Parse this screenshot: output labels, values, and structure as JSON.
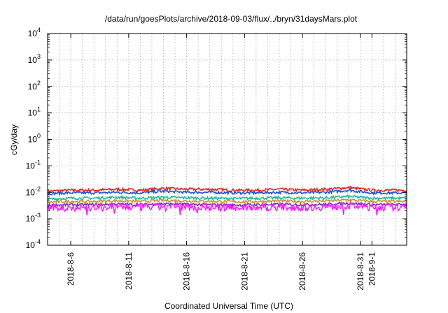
{
  "chart_data": {
    "type": "line",
    "title": "/data/run/goesPlots/archive/2018-09-03/flux/../bryn/31daysMars.plot",
    "xlabel": "Coordinated Universal Time (UTC)",
    "ylabel": "cGy/day",
    "yscale": "log",
    "ylim": [
      0.0001,
      10000
    ],
    "xlim": [
      "2018-08-04T00:00",
      "2018-09-04T00:00"
    ],
    "grid": true,
    "legend": "none",
    "y_ticks": [
      {
        "base": "10",
        "exp": "-4"
      },
      {
        "base": "10",
        "exp": "-3"
      },
      {
        "base": "10",
        "exp": "-2"
      },
      {
        "base": "10",
        "exp": "-1"
      },
      {
        "base": "10",
        "exp": "0"
      },
      {
        "base": "10",
        "exp": "1"
      },
      {
        "base": "10",
        "exp": "2"
      },
      {
        "base": "10",
        "exp": "3"
      },
      {
        "base": "10",
        "exp": "4"
      }
    ],
    "x_ticks": [
      {
        "label": "2018-8-6",
        "date": "2018-08-06"
      },
      {
        "label": "2018-8-11",
        "date": "2018-08-11"
      },
      {
        "label": "2018-8-16",
        "date": "2018-08-16"
      },
      {
        "label": "2018-8-21",
        "date": "2018-08-21"
      },
      {
        "label": "2018-8-26",
        "date": "2018-08-26"
      },
      {
        "label": "2018-8-31",
        "date": "2018-08-31"
      },
      {
        "label": "2018-9-1",
        "date": "2018-09-01"
      }
    ],
    "minor_x_gridlines": [
      "2018-08-04",
      "2018-08-05",
      "2018-08-07",
      "2018-08-08",
      "2018-08-09",
      "2018-08-10",
      "2018-08-12",
      "2018-08-13",
      "2018-08-14",
      "2018-08-15",
      "2018-08-17",
      "2018-08-18",
      "2018-08-19",
      "2018-08-20",
      "2018-08-22",
      "2018-08-23",
      "2018-08-24",
      "2018-08-25",
      "2018-08-27",
      "2018-08-28",
      "2018-08-29",
      "2018-08-30",
      "2018-09-02",
      "2018-09-03"
    ],
    "series": [
      {
        "color": "#e8231a",
        "x": [
          "2018-08-04",
          "2018-08-06",
          "2018-08-08",
          "2018-08-10",
          "2018-08-12",
          "2018-08-14",
          "2018-08-16",
          "2018-08-18",
          "2018-08-20",
          "2018-08-22",
          "2018-08-24",
          "2018-08-26",
          "2018-08-28",
          "2018-08-30",
          "2018-09-01",
          "2018-09-03",
          "2018-09-04"
        ],
        "y": [
          0.011,
          0.012,
          0.012,
          0.013,
          0.012,
          0.014,
          0.013,
          0.013,
          0.012,
          0.012,
          0.013,
          0.012,
          0.013,
          0.015,
          0.012,
          0.012,
          0.012
        ]
      },
      {
        "color": "#1f4fe0",
        "x": [
          "2018-08-04",
          "2018-08-06",
          "2018-08-08",
          "2018-08-10",
          "2018-08-12",
          "2018-08-14",
          "2018-08-16",
          "2018-08-18",
          "2018-08-20",
          "2018-08-22",
          "2018-08-24",
          "2018-08-26",
          "2018-08-28",
          "2018-08-30",
          "2018-09-01",
          "2018-09-03",
          "2018-09-04"
        ],
        "y": [
          0.009,
          0.0095,
          0.0095,
          0.01,
          0.0095,
          0.011,
          0.01,
          0.01,
          0.0095,
          0.0095,
          0.01,
          0.0095,
          0.01,
          0.012,
          0.0095,
          0.0095,
          0.0095
        ]
      },
      {
        "color": "#21b89a",
        "x": [
          "2018-08-04",
          "2018-08-06",
          "2018-08-08",
          "2018-08-10",
          "2018-08-12",
          "2018-08-14",
          "2018-08-16",
          "2018-08-18",
          "2018-08-20",
          "2018-08-22",
          "2018-08-24",
          "2018-08-26",
          "2018-08-28",
          "2018-08-30",
          "2018-09-01",
          "2018-09-03",
          "2018-09-04"
        ],
        "y": [
          0.0055,
          0.006,
          0.006,
          0.0065,
          0.006,
          0.0065,
          0.0062,
          0.006,
          0.0058,
          0.006,
          0.0062,
          0.006,
          0.0062,
          0.007,
          0.006,
          0.006,
          0.006
        ]
      },
      {
        "color": "#c9922b",
        "x": [
          "2018-08-04",
          "2018-08-06",
          "2018-08-08",
          "2018-08-10",
          "2018-08-12",
          "2018-08-14",
          "2018-08-16",
          "2018-08-18",
          "2018-08-20",
          "2018-08-22",
          "2018-08-24",
          "2018-08-26",
          "2018-08-28",
          "2018-08-30",
          "2018-09-01",
          "2018-09-03",
          "2018-09-04"
        ],
        "y": [
          0.0042,
          0.0045,
          0.0045,
          0.0048,
          0.0045,
          0.005,
          0.0047,
          0.0046,
          0.0044,
          0.0045,
          0.0047,
          0.0045,
          0.0047,
          0.0052,
          0.0045,
          0.0045,
          0.0045
        ]
      },
      {
        "color": "#7b2fc9",
        "x": [
          "2018-08-04",
          "2018-08-06",
          "2018-08-08",
          "2018-08-10",
          "2018-08-12",
          "2018-08-14",
          "2018-08-16",
          "2018-08-18",
          "2018-08-20",
          "2018-08-22",
          "2018-08-24",
          "2018-08-26",
          "2018-08-28",
          "2018-08-30",
          "2018-09-01",
          "2018-09-03",
          "2018-09-04"
        ],
        "y": [
          0.0032,
          0.0034,
          0.0034,
          0.0036,
          0.0034,
          0.0037,
          0.0035,
          0.0034,
          0.0033,
          0.0034,
          0.0035,
          0.0034,
          0.0035,
          0.0039,
          0.0034,
          0.0034,
          0.0034
        ]
      },
      {
        "color": "#ff14ff",
        "x": [
          "2018-08-04",
          "2018-08-06",
          "2018-08-08",
          "2018-08-10",
          "2018-08-12",
          "2018-08-14",
          "2018-08-16",
          "2018-08-18",
          "2018-08-20",
          "2018-08-22",
          "2018-08-24",
          "2018-08-26",
          "2018-08-28",
          "2018-08-30",
          "2018-09-01",
          "2018-09-03",
          "2018-09-04"
        ],
        "y": [
          0.0025,
          0.0027,
          0.0026,
          0.0028,
          0.0027,
          0.0029,
          0.0028,
          0.0027,
          0.0026,
          0.0027,
          0.0028,
          0.0027,
          0.0028,
          0.0031,
          0.0027,
          0.0027,
          0.0027
        ]
      }
    ]
  }
}
